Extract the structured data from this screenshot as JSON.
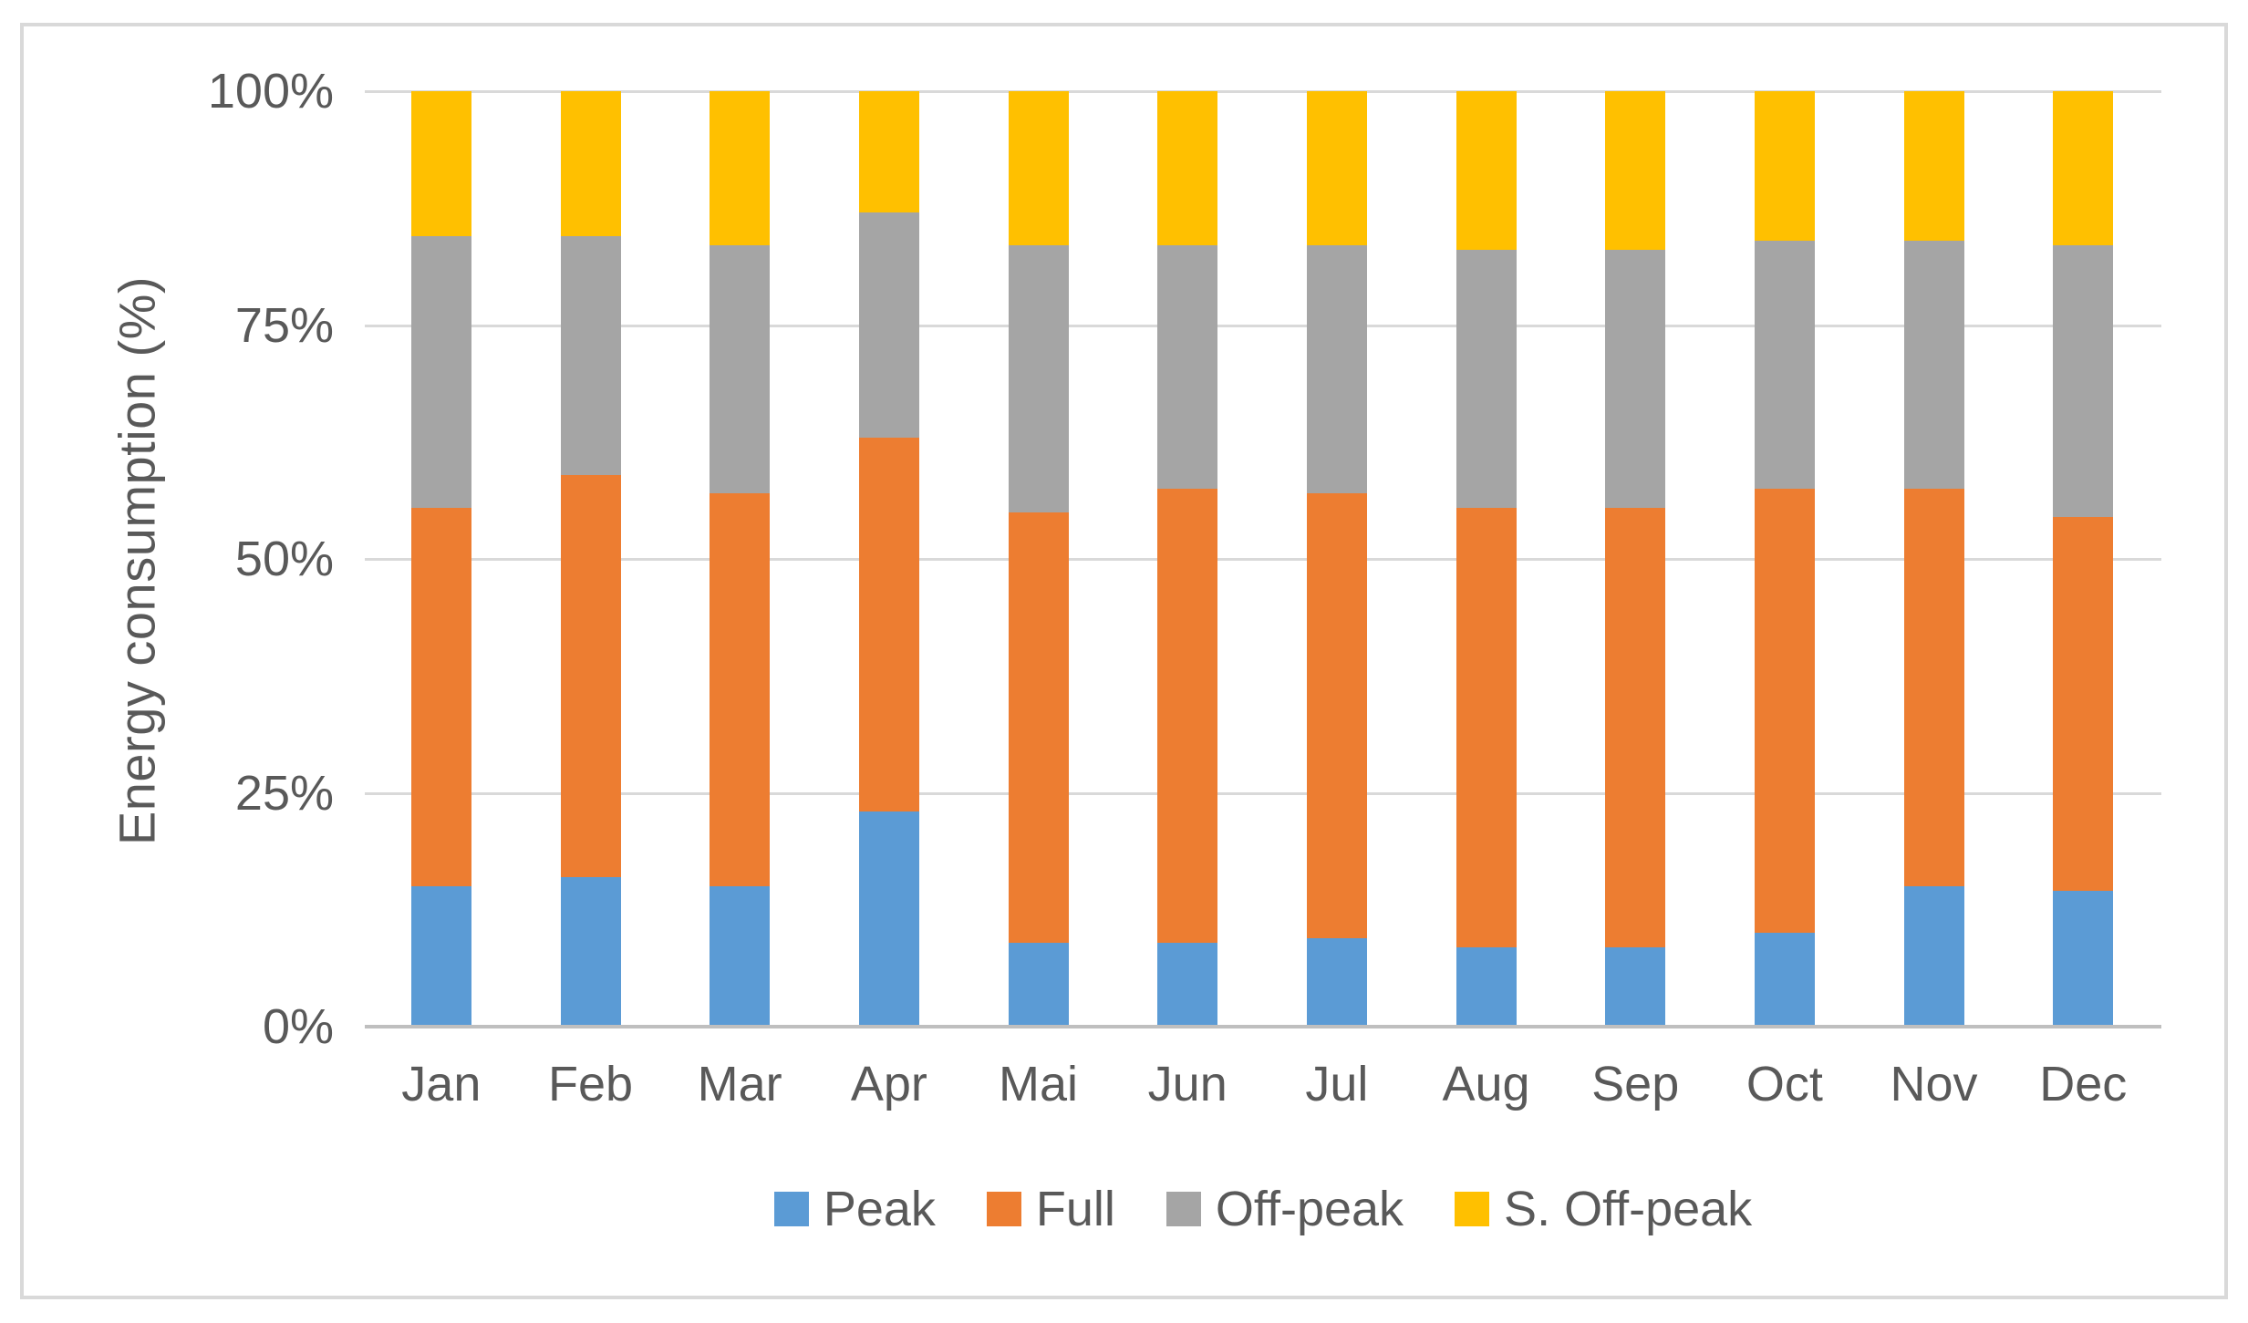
{
  "chart_data": {
    "type": "bar",
    "stacked": true,
    "percent_stacked": true,
    "title": "",
    "xlabel": "",
    "ylabel": "Energy consumption (%)",
    "ylim": [
      0,
      100
    ],
    "grid": true,
    "legend_position": "bottom",
    "yticks": [
      {
        "value": 0,
        "label": "0%"
      },
      {
        "value": 25,
        "label": "25%"
      },
      {
        "value": 50,
        "label": "50%"
      },
      {
        "value": 75,
        "label": "75%"
      },
      {
        "value": 100,
        "label": "100%"
      }
    ],
    "categories": [
      "Jan",
      "Feb",
      "Mar",
      "Apr",
      "Mai",
      "Jun",
      "Jul",
      "Aug",
      "Sep",
      "Oct",
      "Nov",
      "Dec"
    ],
    "series": [
      {
        "name": "Peak",
        "color": "#5B9BD5",
        "values": [
          15,
          16,
          15,
          23,
          9,
          9,
          9.5,
          8.5,
          8.5,
          10,
          15,
          14.5
        ]
      },
      {
        "name": "Full",
        "color": "#ED7D31",
        "values": [
          40.5,
          43,
          42,
          40,
          46,
          48.5,
          47.5,
          47,
          47,
          47.5,
          42.5,
          40
        ]
      },
      {
        "name": "Off-peak",
        "color": "#A5A5A5",
        "values": [
          29,
          25.5,
          26.5,
          24,
          28.5,
          26,
          26.5,
          27.5,
          27.5,
          26.5,
          26.5,
          29
        ]
      },
      {
        "name": "S. Off-peak",
        "color": "#FFC000",
        "values": [
          15.5,
          15.5,
          16.5,
          13,
          16.5,
          16.5,
          16.5,
          17,
          17,
          16,
          16,
          16.5
        ]
      }
    ]
  },
  "colors": {
    "gridline": "#D9D9D9",
    "axis_line": "#BFBFBF",
    "frame_border": "#D9D9D9",
    "text": "#595959",
    "background": "#FFFFFF"
  }
}
